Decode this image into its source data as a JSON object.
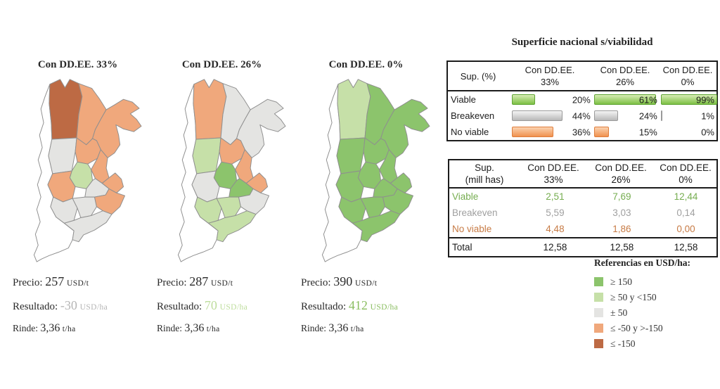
{
  "region_colors": {
    "pos2": "#8cc46c",
    "pos1": "#c6e0a8",
    "neu": "#e4e4e2",
    "neg1": "#f0a87c",
    "neg2": "#bd6a44"
  },
  "labels": {
    "precio": "Precio:",
    "resultado": "Resultado:",
    "rinde": "Rinde:"
  },
  "units": {
    "precio": "USD/t",
    "resultado": "USD/ha",
    "rinde": "t/ha"
  },
  "maps": [
    {
      "title": "Con DD.EE. 33%",
      "stats": {
        "precio": "257",
        "resultado": "-30",
        "rinde": "3,36"
      },
      "resultado_color": "#b5b5b5",
      "regions": {
        "A": "neg2",
        "B": "neg1",
        "C": "neg1",
        "D": "neu",
        "E": "neg1",
        "F": "neg1",
        "G": "pos1",
        "H": "neg1",
        "I": "neg1",
        "J": "neu",
        "K": "neu",
        "L": "neu",
        "M": "neg1",
        "N": "neu"
      }
    },
    {
      "title": "Con DD.EE. 26%",
      "stats": {
        "precio": "287",
        "resultado": "70",
        "rinde": "3,36"
      },
      "resultado_color": "#bedd9d",
      "regions": {
        "A": "neg1",
        "B": "neu",
        "C": "neu",
        "D": "pos1",
        "E": "neg1",
        "F": "neg1",
        "G": "pos2",
        "H": "neg1",
        "I": "neu",
        "J": "pos2",
        "K": "pos1",
        "L": "pos1",
        "M": "neu",
        "N": "pos1"
      }
    },
    {
      "title": "Con DD.EE. 0%",
      "stats": {
        "precio": "390",
        "resultado": "412",
        "rinde": "3,36"
      },
      "resultado_color": "#8abd60",
      "regions": {
        "A": "pos1",
        "B": "pos2",
        "C": "pos2",
        "D": "pos2",
        "E": "pos2",
        "F": "pos2",
        "G": "pos2",
        "H": "pos2",
        "I": "pos2",
        "J": "pos2",
        "K": "pos2",
        "L": "pos2",
        "M": "pos2",
        "N": "pos2"
      }
    }
  ],
  "panel": {
    "title": "Superficie nacional s/viabilidad",
    "columns": [
      {
        "line1": "Con DD.EE.",
        "line2": "33%"
      },
      {
        "line1": "Con DD.EE.",
        "line2": "26%"
      },
      {
        "line1": "Con DD.EE.",
        "line2": "0%"
      }
    ],
    "table_pct": {
      "corner": "Sup. (%)",
      "rows": [
        {
          "label": "Viable",
          "category": "viable",
          "values": [
            20,
            61,
            99
          ],
          "display": [
            "20%",
            "61%",
            "99%"
          ]
        },
        {
          "label": "Breakeven",
          "category": "breakeven",
          "values": [
            44,
            24,
            1
          ],
          "display": [
            "44%",
            "24%",
            "1%"
          ]
        },
        {
          "label": "No viable",
          "category": "noviable",
          "values": [
            36,
            15,
            0
          ],
          "display": [
            "36%",
            "15%",
            "0%"
          ]
        }
      ]
    },
    "table_area": {
      "corner_line1": "Sup.",
      "corner_line2": "(mill has)",
      "rows": [
        {
          "label": "Viable",
          "category": "viable",
          "values": [
            "2,51",
            "7,69",
            "12,44"
          ]
        },
        {
          "label": "Breakeven",
          "category": "breakeven",
          "values": [
            "5,59",
            "3,03",
            "0,14"
          ]
        },
        {
          "label": "No viable",
          "category": "noviable",
          "values": [
            "4,48",
            "1,86",
            "0,00"
          ]
        }
      ],
      "total": {
        "label": "Total",
        "values": [
          "12,58",
          "12,58",
          "12,58"
        ]
      }
    },
    "legend": {
      "title": "Referencias en USD/ha:",
      "items": [
        {
          "label": "≥ 150",
          "color": "#8cc46c"
        },
        {
          "label": "≥ 50 y <150",
          "color": "#c6e0a8"
        },
        {
          "label": "± 50",
          "color": "#e4e4e2"
        },
        {
          "label": "≤ -50 y >-150",
          "color": "#f0a87c"
        },
        {
          "label": "≤ -150",
          "color": "#bd6a44"
        }
      ]
    }
  },
  "chart_data": [
    {
      "type": "bar",
      "title": "Superficie nacional s/viabilidad",
      "ylabel": "Sup. (%)",
      "categories": [
        "Con DD.EE. 33%",
        "Con DD.EE. 26%",
        "Con DD.EE. 0%"
      ],
      "series": [
        {
          "name": "Viable",
          "values": [
            20,
            61,
            99
          ]
        },
        {
          "name": "Breakeven",
          "values": [
            44,
            24,
            1
          ]
        },
        {
          "name": "No viable",
          "values": [
            36,
            15,
            0
          ]
        }
      ],
      "unit": "%",
      "legend_position": "rows-left",
      "grid": false
    },
    {
      "type": "table",
      "title": "Sup. (mill has)",
      "categories": [
        "Con DD.EE. 33%",
        "Con DD.EE. 26%",
        "Con DD.EE. 0%"
      ],
      "series": [
        {
          "name": "Viable",
          "values": [
            2.51,
            7.69,
            12.44
          ]
        },
        {
          "name": "Breakeven",
          "values": [
            5.59,
            3.03,
            0.14
          ]
        },
        {
          "name": "No viable",
          "values": [
            4.48,
            1.86,
            0.0
          ]
        },
        {
          "name": "Total",
          "values": [
            12.58,
            12.58,
            12.58
          ]
        }
      ]
    },
    {
      "type": "heatmap",
      "title": "Mapas de viabilidad por escenario (resultado en USD/ha)",
      "scenarios": [
        {
          "name": "Con DD.EE. 33%",
          "precio_usd_t": 257,
          "resultado_usd_ha": -30,
          "rinde_t_ha": 3.36
        },
        {
          "name": "Con DD.EE. 26%",
          "precio_usd_t": 287,
          "resultado_usd_ha": 70,
          "rinde_t_ha": 3.36
        },
        {
          "name": "Con DD.EE. 0%",
          "precio_usd_t": 390,
          "resultado_usd_ha": 412,
          "rinde_t_ha": 3.36
        }
      ],
      "legend_bins": [
        "≥ 150",
        "≥ 50 y <150",
        "± 50",
        "≤ -50 y >-150",
        "≤ -150"
      ]
    }
  ]
}
